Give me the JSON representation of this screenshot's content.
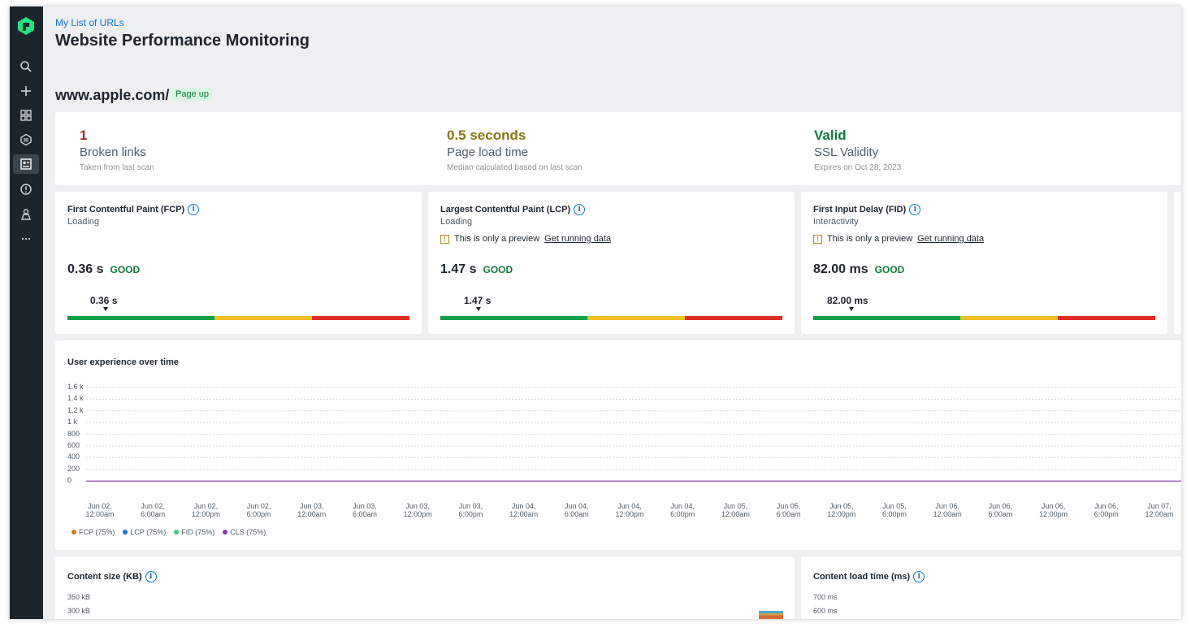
{
  "breadcrumb": "My List of URLs",
  "page_title": "Website Performance Monitoring",
  "site": {
    "url": "www.apple.com/",
    "status": "Page up"
  },
  "summary": [
    {
      "value": "1",
      "label": "Broken links",
      "sub": "Taken from last scan",
      "color": "#b0262b"
    },
    {
      "value": "0.5 seconds",
      "label": "Page load time",
      "sub": "Median calculated based on last scan",
      "color": "#8a7410"
    },
    {
      "value": "Valid",
      "label": "SSL Validity",
      "sub": "Expires on Oct 28, 2023",
      "color": "#0e7a3a"
    }
  ],
  "vitals": [
    {
      "title": "First Contentful Paint (FCP)",
      "category": "Loading",
      "preview": "",
      "link": "",
      "value": "0.36 s",
      "rating": "GOOD",
      "marker": "0.36 s"
    },
    {
      "title": "Largest Contentful Paint (LCP)",
      "category": "Loading",
      "preview": "This is only a preview",
      "link": "Get running data",
      "value": "1.47 s",
      "rating": "GOOD",
      "marker": "1.47 s"
    },
    {
      "title": "First Input Delay (FID)",
      "category": "Interactivity",
      "preview": "This is only a preview",
      "link": "Get running data",
      "value": "82.00 ms",
      "rating": "GOOD",
      "marker": "82.00 ms"
    }
  ],
  "ux_chart": {
    "title": "User experience over time",
    "y_ticks": [
      "1.6 k",
      "1.4 k",
      "1.2 k",
      "1 k",
      "800",
      "600",
      "400",
      "200",
      "0"
    ],
    "x_ticks": [
      [
        "Jun 02,",
        "12:00am"
      ],
      [
        "Jun 02,",
        "6:00am"
      ],
      [
        "Jun 02,",
        "12:00pm"
      ],
      [
        "Jun 02,",
        "6:00pm"
      ],
      [
        "Jun 03,",
        "12:00am"
      ],
      [
        "Jun 03,",
        "6:00am"
      ],
      [
        "Jun 03,",
        "12:00pm"
      ],
      [
        "Jun 03,",
        "6:00pm"
      ],
      [
        "Jun 04,",
        "12:00am"
      ],
      [
        "Jun 04,",
        "6:00am"
      ],
      [
        "Jun 04,",
        "12:00pm"
      ],
      [
        "Jun 04,",
        "6:00pm"
      ],
      [
        "Jun 05,",
        "12:00am"
      ],
      [
        "Jun 05,",
        "6:00am"
      ],
      [
        "Jun 05,",
        "12:00pm"
      ],
      [
        "Jun 05,",
        "6:00pm"
      ],
      [
        "Jun 06,",
        "12:00am"
      ],
      [
        "Jun 06,",
        "6:00am"
      ],
      [
        "Jun 06,",
        "12:00pm"
      ],
      [
        "Jun 06,",
        "6:00pm"
      ],
      [
        "Jun 07,",
        "12:00am"
      ]
    ],
    "legend": [
      {
        "label": "FCP (75%)",
        "color": "#e0701c"
      },
      {
        "label": "LCP (75%)",
        "color": "#1f6fd6"
      },
      {
        "label": "FID (75%)",
        "color": "#3ccf7a"
      },
      {
        "label": "CLS (75%)",
        "color": "#8a35b5"
      }
    ]
  },
  "content_size": {
    "title": "Content size (KB)",
    "y_ticks": [
      "350 kB",
      "300 kB"
    ]
  },
  "content_load": {
    "title": "Content load time (ms)",
    "y_ticks": [
      "700 ms",
      "600 ms"
    ]
  },
  "icons": [
    "logo-icon",
    "search-icon",
    "plus-icon",
    "grid-icon",
    "layers-icon",
    "monitor-icon",
    "alert-icon",
    "user-icon",
    "more-icon"
  ]
}
